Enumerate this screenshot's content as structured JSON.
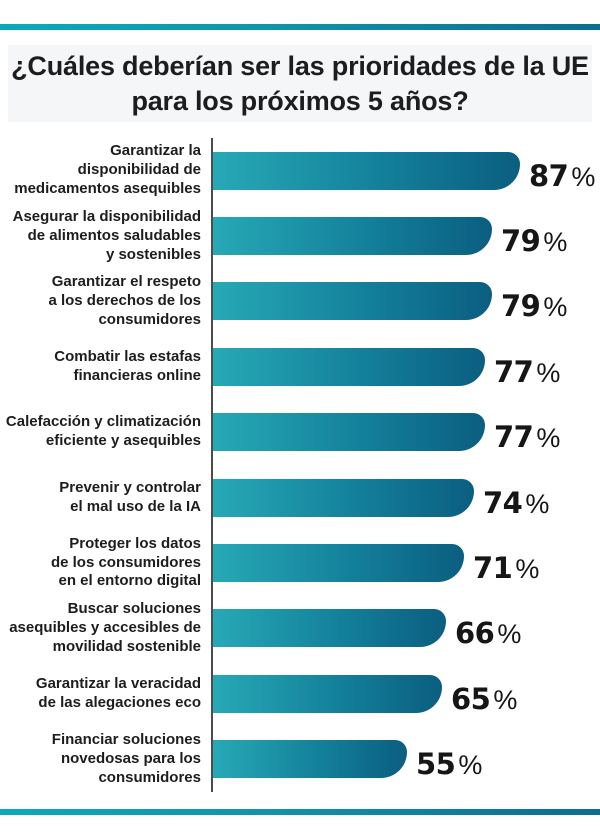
{
  "title": {
    "line1": "¿Cuáles deberían ser las prioridades de la UE",
    "line2": "para los próximos 5 años?"
  },
  "percent_sign": "%",
  "colors": {
    "accent_line_gradient_start": "#0ba9ba",
    "accent_line_gradient_end": "#0c6d8e",
    "bar_gradient_start": "#27a9b6",
    "bar_gradient_end": "#0b5e80",
    "title_background": "#f5f6f8",
    "text": "#1d1d1e",
    "axis_line": "#4c4c4c"
  },
  "chart_data": {
    "type": "bar",
    "orientation": "horizontal",
    "title": "¿Cuáles deberían ser las prioridades de la UE para los próximos 5 años?",
    "unit": "%",
    "xlim": [
      0,
      100
    ],
    "grid": false,
    "legend": false,
    "max_value_for_scale": 87,
    "categories": [
      "Garantizar la disponibilidad de medicamentos asequibles",
      "Asegurar la disponibilidad de alimentos saludables y sostenibles",
      "Garantizar el respeto a los derechos de los consumidores",
      "Combatir las estafas financieras online",
      "Calefacción y climatización eficiente y asequibles",
      "Prevenir y controlar el mal uso de la IA",
      "Proteger los datos de los consumidores en el entorno digital",
      "Buscar soluciones asequibles y accesibles de movilidad sostenible",
      "Garantizar la veracidad de las alegaciones eco",
      "Financiar soluciones novedosas para los consumidores"
    ],
    "values": [
      87,
      79,
      79,
      77,
      77,
      74,
      71,
      66,
      65,
      55
    ],
    "rows": [
      {
        "label": "Garantizar la\ndisponibilidad de\nmedicamentos asequibles",
        "value": 87,
        "value_label": "87"
      },
      {
        "label": "Asegurar la disponibilidad\nde alimentos saludables\ny sostenibles",
        "value": 79,
        "value_label": "79"
      },
      {
        "label": "Garantizar el respeto\na los derechos de los\nconsumidores",
        "value": 79,
        "value_label": "79"
      },
      {
        "label": "Combatir las estafas\nfinancieras online",
        "value": 77,
        "value_label": "77"
      },
      {
        "label": "Calefacción y climatización\neficiente y asequibles",
        "value": 77,
        "value_label": "77"
      },
      {
        "label": "Prevenir y controlar\nel mal uso de la IA",
        "value": 74,
        "value_label": "74"
      },
      {
        "label": "Proteger los datos\nde los consumidores\nen el entorno digital",
        "value": 71,
        "value_label": "71"
      },
      {
        "label": "Buscar soluciones\nasequibles y accesibles de\nmovilidad sostenible",
        "value": 66,
        "value_label": "66"
      },
      {
        "label": "Garantizar la veracidad\nde las alegaciones eco",
        "value": 65,
        "value_label": "65"
      },
      {
        "label": "Financiar soluciones\nnovedosas para los\nconsumidores",
        "value": 55,
        "value_label": "55"
      }
    ]
  }
}
